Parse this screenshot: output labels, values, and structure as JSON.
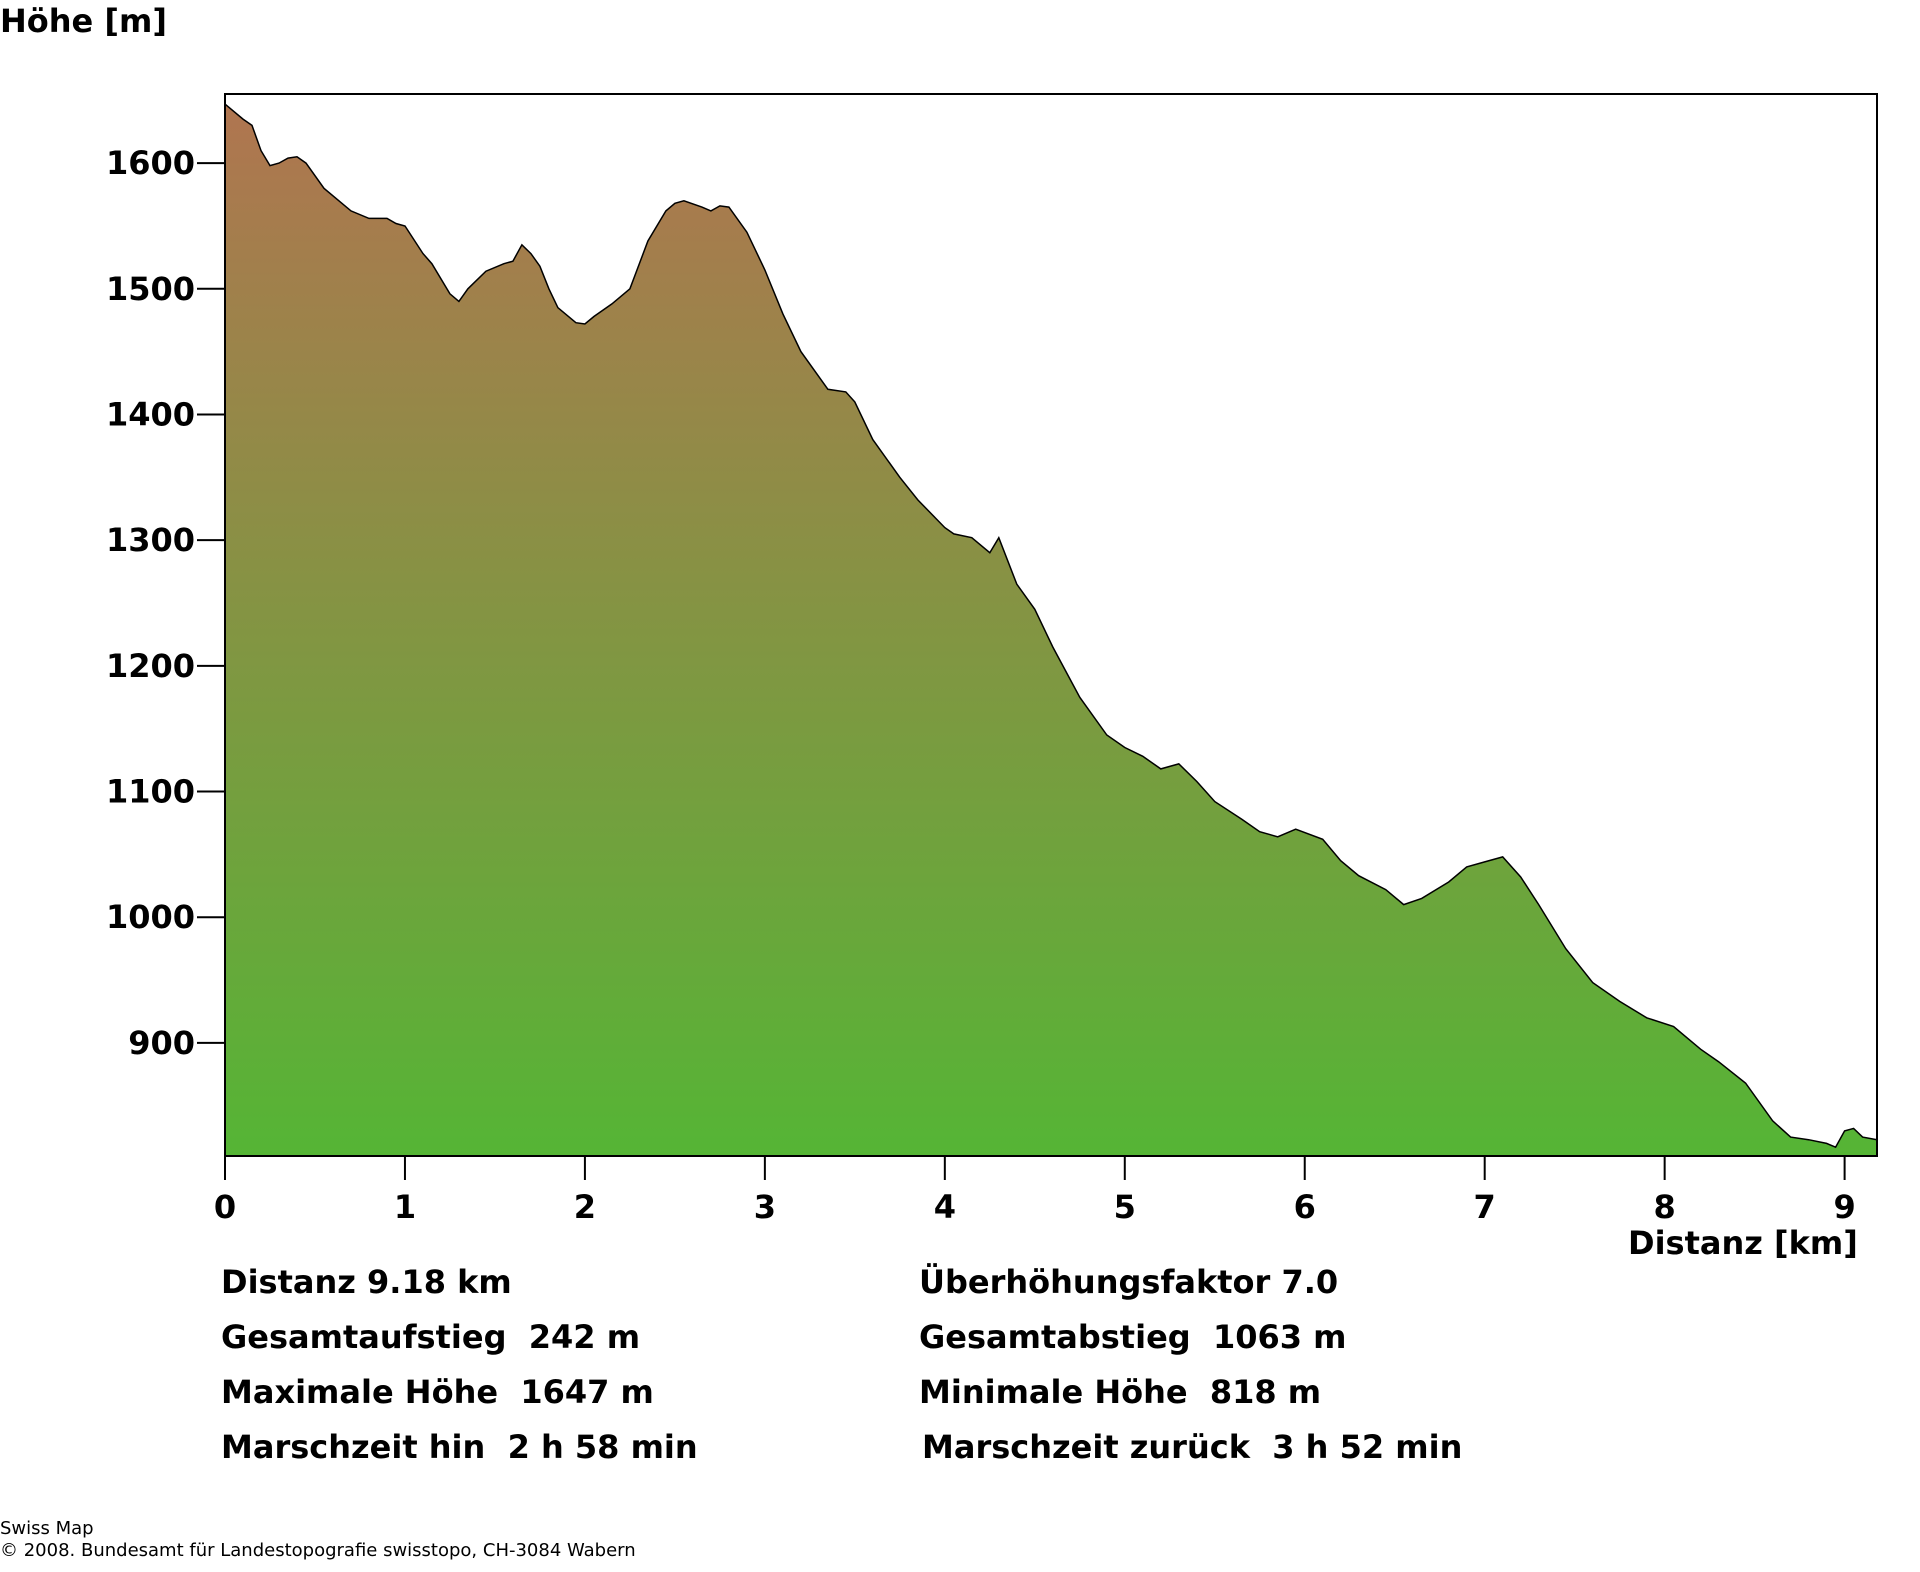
{
  "chart_data": {
    "type": "area",
    "ylabel": "Höhe [m]",
    "xlabel": "Distanz [km]",
    "xlim": [
      0,
      9.18
    ],
    "ylim": [
      810,
      1655
    ],
    "xticks": [
      0,
      1,
      2,
      3,
      4,
      5,
      6,
      7,
      8,
      9
    ],
    "xtick_labels": [
      "0",
      "1",
      "2",
      "3",
      "4",
      "5",
      "6",
      "7",
      "8",
      "9"
    ],
    "yticks": [
      900,
      1000,
      1100,
      1200,
      1300,
      1400,
      1500,
      1600
    ],
    "ytick_labels": [
      "900",
      "1000",
      "1100",
      "1200",
      "1300",
      "1400",
      "1500",
      "1600"
    ],
    "grid": false,
    "colors": {
      "top": "#b07550",
      "bottom": "#55b535",
      "line": "#000000"
    },
    "x": [
      0,
      0.1,
      0.15,
      0.2,
      0.25,
      0.3,
      0.35,
      0.4,
      0.45,
      0.55,
      0.7,
      0.8,
      0.9,
      0.95,
      1.0,
      1.1,
      1.15,
      1.25,
      1.3,
      1.35,
      1.45,
      1.55,
      1.6,
      1.65,
      1.7,
      1.75,
      1.8,
      1.85,
      1.95,
      2.0,
      2.05,
      2.15,
      2.25,
      2.35,
      2.45,
      2.5,
      2.55,
      2.65,
      2.7,
      2.75,
      2.8,
      2.9,
      3.0,
      3.1,
      3.2,
      3.35,
      3.45,
      3.5,
      3.6,
      3.75,
      3.85,
      4.0,
      4.05,
      4.15,
      4.25,
      4.3,
      4.4,
      4.5,
      4.6,
      4.75,
      4.9,
      5.0,
      5.1,
      5.2,
      5.3,
      5.4,
      5.5,
      5.65,
      5.75,
      5.85,
      5.95,
      6.1,
      6.2,
      6.3,
      6.45,
      6.55,
      6.65,
      6.8,
      6.9,
      7.0,
      7.1,
      7.2,
      7.3,
      7.45,
      7.6,
      7.75,
      7.9,
      8.05,
      8.2,
      8.3,
      8.45,
      8.6,
      8.7,
      8.8,
      8.9,
      8.95,
      9.0,
      9.05,
      9.1,
      9.18
    ],
    "y": [
      1647,
      1635,
      1630,
      1610,
      1598,
      1600,
      1604,
      1605,
      1600,
      1580,
      1562,
      1556,
      1556,
      1552,
      1550,
      1528,
      1520,
      1496,
      1490,
      1500,
      1514,
      1520,
      1522,
      1535,
      1528,
      1518,
      1500,
      1485,
      1473,
      1472,
      1478,
      1488,
      1500,
      1538,
      1562,
      1568,
      1570,
      1565,
      1562,
      1566,
      1565,
      1545,
      1515,
      1480,
      1450,
      1420,
      1418,
      1410,
      1380,
      1350,
      1332,
      1310,
      1305,
      1302,
      1290,
      1302,
      1265,
      1245,
      1215,
      1175,
      1145,
      1135,
      1128,
      1118,
      1122,
      1108,
      1092,
      1078,
      1068,
      1064,
      1070,
      1062,
      1045,
      1033,
      1022,
      1010,
      1015,
      1028,
      1040,
      1044,
      1048,
      1032,
      1010,
      975,
      948,
      933,
      920,
      913,
      895,
      885,
      868,
      838,
      825,
      823,
      820,
      817,
      830,
      832,
      825,
      823
    ]
  },
  "stats": {
    "distance": "Distanz 9.18 km",
    "exaggeration": "Überhöhungsfaktor 7.0",
    "ascent": "Gesamtaufstieg  242 m",
    "descent": "Gesamtabstieg  1063 m",
    "max_height": "Maximale Höhe  1647 m",
    "min_height": "Minimale Höhe  818 m",
    "time_forward": "Marschzeit hin  2 h 58 min",
    "time_back": "Marschzeit zurück  3 h 52 min"
  },
  "credits": {
    "line1": "Swiss Map",
    "line2": "© 2008. Bundesamt für Landestopografie swisstopo, CH-3084 Wabern"
  }
}
